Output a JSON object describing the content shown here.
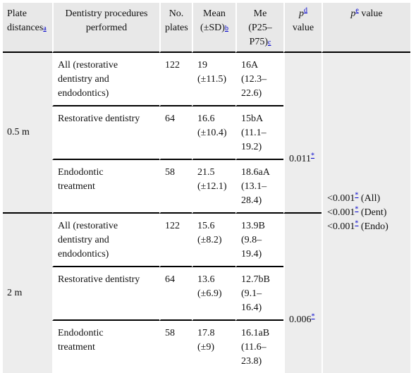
{
  "headers": {
    "plate_distances": "Plate distances",
    "plate_distances_fn": "a",
    "procedures": "Dentistry procedures performed",
    "no_plates_1": "No.",
    "no_plates_2": "plates",
    "mean_1": "Mean",
    "mean_2": "(±SD)",
    "mean_fn": "b",
    "me_1": "Me (P25–",
    "me_2": "P75)",
    "me_fn": "c",
    "pd_p": "p",
    "pd_fn": "d",
    "pd_value": "value",
    "pe_p": "p",
    "pe_fn": "e",
    "pe_value": " value"
  },
  "groups": [
    {
      "distance": "0.5 m",
      "p_d": "0.011",
      "rows": [
        {
          "procedure_lines": [
            "All (restorative",
            "dentistry and",
            "endodontics)"
          ],
          "plates": "122",
          "mean_lines": [
            "19",
            "(±11.5)"
          ],
          "me_lines": [
            "16A",
            "(12.3–",
            "22.6)"
          ]
        },
        {
          "procedure_lines": [
            "Restorative dentistry"
          ],
          "plates": "64",
          "mean_lines": [
            "16.6",
            "(±10.4)"
          ],
          "me_lines": [
            "15bA",
            "(11.1–",
            "19.2)"
          ]
        },
        {
          "procedure_lines": [
            "Endodontic",
            "treatment"
          ],
          "plates": "58",
          "mean_lines": [
            "21.5",
            "(±12.1)"
          ],
          "me_lines": [
            "18.6aA",
            "(13.1–",
            "28.4)"
          ]
        }
      ]
    },
    {
      "distance": "2 m",
      "p_d": "0.006",
      "rows": [
        {
          "procedure_lines": [
            "All (restorative",
            "dentistry and",
            "endodontics)"
          ],
          "plates": "122",
          "mean_lines": [
            "15.6",
            "(±8.2)"
          ],
          "me_lines": [
            "13.9B",
            "(9.8–",
            "19.4)"
          ]
        },
        {
          "procedure_lines": [
            "Restorative dentistry"
          ],
          "plates": "64",
          "mean_lines": [
            "13.6",
            "(±6.9)"
          ],
          "me_lines": [
            "12.7bB",
            "(9.1–",
            "16.4)"
          ]
        },
        {
          "procedure_lines": [
            "Endodontic",
            "treatment"
          ],
          "plates": "58",
          "mean_lines": [
            "17.8",
            "(±9)"
          ],
          "me_lines": [
            "16.1aB",
            "(11.6–",
            "23.8)"
          ]
        }
      ]
    }
  ],
  "p_e": [
    {
      "value": "<0.001",
      "label": " (All)"
    },
    {
      "value": "<0.001",
      "label": " (Dent)"
    },
    {
      "value": "<0.001",
      "label": " (Endo)"
    }
  ],
  "asterisk": "*"
}
